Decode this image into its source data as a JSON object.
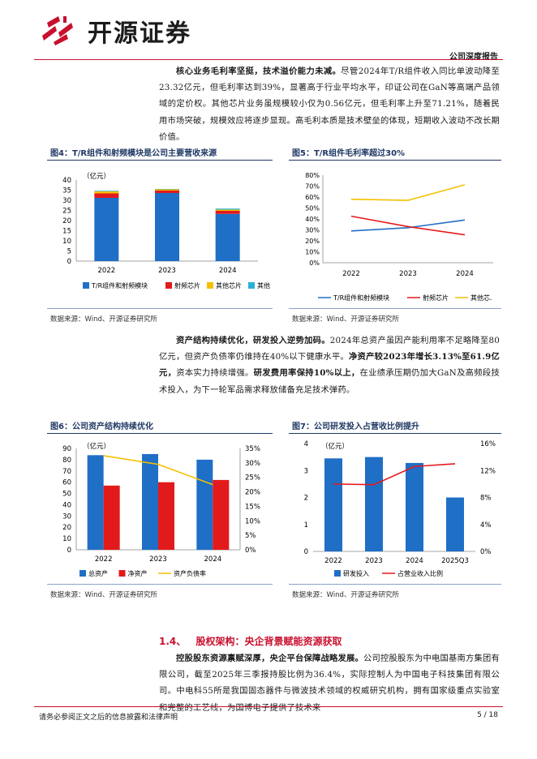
{
  "header": {
    "company": "开源证券",
    "report_type": "公司深度报告"
  },
  "paragraphs": {
    "p1": {
      "lead": "核心业务毛利率坚挺，技术溢价能力未减。",
      "body": "尽管2024年T/R组件收入同比单波动降至23.32亿元，但毛利率达到39%，显著高于行业平均水平，印证公司在GaN等高端产品领域的定价权。其他芯片业务虽规模较小仅为0.56亿元，但毛利率上升至71.21%，随着民用市场突破，规模效应将逐步显现。高毛利本质是技术壁垒的体现，短期收入波动不改长期价值。"
    },
    "p2": {
      "lead": "资产结构持续优化，研发投入逆势加码。",
      "body1": "2024年总资产虽因产能利用率不足略降至80亿元，但资产负债率仍维持在40%以下健康水平。",
      "bold2": "净资产较2023年增长3.13%至61.9亿元，",
      "body2": "资本实力持续增强。",
      "bold3": "研发费用率保持10%以上，",
      "body3": "在业绩承压期仍加大GaN及高频段技术投入，为下一轮军品需求释放储备充足技术弹药。"
    },
    "p3": {
      "lead": "控股股东资源禀赋深厚，央企平台保障战略发展。",
      "body": "公司控股股东为中电国基南方集团有限公司，截至2025年三季报持股比例为36.4%，实际控制人为中国电子科技集团有限公司。中电科55所是我国固态器件与微波技术领域的权威研究机构，拥有国家级重点实验室和完整的工艺线，为国博电子提供了技术来"
    }
  },
  "section": {
    "number": "1.4、",
    "title": "股权架构：央企背景赋能资源获取"
  },
  "figures": {
    "fig4": {
      "title": "图4：T/R组件和射频模块是公司主要营收来源",
      "source": "数据来源：Wind、开源证券研究所"
    },
    "fig5": {
      "title": "图5：T/R组件毛利率超过30%",
      "source": "数据来源：Wind、开源证券研究所"
    },
    "fig6": {
      "title": "图6：公司资产结构持续优化",
      "source": "数据来源：Wind、开源证券研究所"
    },
    "fig7": {
      "title": "图7：公司研发投入占营收比例提升",
      "source": "数据来源：Wind、开源证券研究所"
    }
  },
  "colors": {
    "brand_red": "#c8102e",
    "navy": "#1f3864",
    "blue": "#1f6fc6",
    "red": "#e31a1c",
    "yellow": "#f5c000",
    "cyan": "#2ab0d8"
  },
  "chart_data": [
    {
      "id": "fig4",
      "type": "bar",
      "stacked": true,
      "unit_label": "（亿元）",
      "categories": [
        "2022",
        "2023",
        "2024"
      ],
      "ylim": [
        0,
        40
      ],
      "yticks": [
        0,
        5,
        10,
        15,
        20,
        25,
        30,
        35,
        40
      ],
      "series": [
        {
          "name": "T/R组件和射频模块",
          "color": "#1f6fc6",
          "values": [
            31.2,
            33.6,
            23.3
          ]
        },
        {
          "name": "射频芯片",
          "color": "#e31a1c",
          "values": [
            2.2,
            1.2,
            1.5
          ]
        },
        {
          "name": "其他芯片",
          "color": "#f5c000",
          "values": [
            1.0,
            0.6,
            0.6
          ]
        },
        {
          "name": "其他",
          "color": "#2ab0d8",
          "values": [
            0.3,
            0.2,
            0.5
          ]
        }
      ]
    },
    {
      "id": "fig5",
      "type": "line",
      "categories": [
        "2022",
        "2023",
        "2024"
      ],
      "ylim": [
        0,
        80
      ],
      "yticks": [
        "0%",
        "10%",
        "20%",
        "30%",
        "40%",
        "50%",
        "60%",
        "70%",
        "80%"
      ],
      "series": [
        {
          "name": "T/R组件和射频模块",
          "color": "#1f6fc6",
          "values": [
            29,
            32,
            39
          ]
        },
        {
          "name": "射频芯片",
          "color": "#e31a1c",
          "values": [
            42.5,
            33,
            25.5
          ]
        },
        {
          "name": "其他芯.",
          "color": "#f5c000",
          "values": [
            58,
            57,
            71.2
          ]
        }
      ]
    },
    {
      "id": "fig6",
      "type": "bar+line",
      "unit_label": "（亿元）",
      "categories": [
        "2022",
        "2023",
        "2024"
      ],
      "ylim_left": [
        0,
        90
      ],
      "yticks_left": [
        0,
        10,
        20,
        30,
        40,
        50,
        60,
        70,
        80,
        90
      ],
      "ylim_right": [
        0,
        35
      ],
      "yticks_right": [
        "0%",
        "5%",
        "10%",
        "15%",
        "20%",
        "25%",
        "30%",
        "35%"
      ],
      "series": [
        {
          "name": "总资产",
          "kind": "bar",
          "color": "#1f6fc6",
          "values": [
            84,
            85,
            80
          ]
        },
        {
          "name": "净资产",
          "kind": "bar",
          "color": "#e31a1c",
          "values": [
            57,
            60,
            62
          ]
        },
        {
          "name": "资产负债率",
          "kind": "line",
          "axis": "right",
          "color": "#f5c000",
          "values": [
            32.5,
            29.5,
            22.5
          ]
        }
      ]
    },
    {
      "id": "fig7",
      "type": "bar+line",
      "unit_label": "（亿元）",
      "categories": [
        "2022",
        "2023",
        "2024",
        "2025Q3"
      ],
      "ylim_left": [
        0,
        4
      ],
      "yticks_left": [
        0,
        1,
        2,
        3,
        4
      ],
      "ylim_right": [
        0,
        16
      ],
      "yticks_right": [
        "0%",
        "4%",
        "8%",
        "12%",
        "16%"
      ],
      "series": [
        {
          "name": "研发投入",
          "kind": "bar",
          "color": "#1f6fc6",
          "values": [
            3.45,
            3.5,
            3.28,
            2.0
          ]
        },
        {
          "name": "占营业收入比例",
          "kind": "line",
          "axis": "right",
          "color": "#e31a1c",
          "values": [
            10.0,
            9.9,
            12.6,
            13.0
          ]
        }
      ]
    }
  ],
  "footer": {
    "disclaimer": "请务必参阅正文之后的信息披露和法律声明",
    "page": "5 / 18"
  }
}
